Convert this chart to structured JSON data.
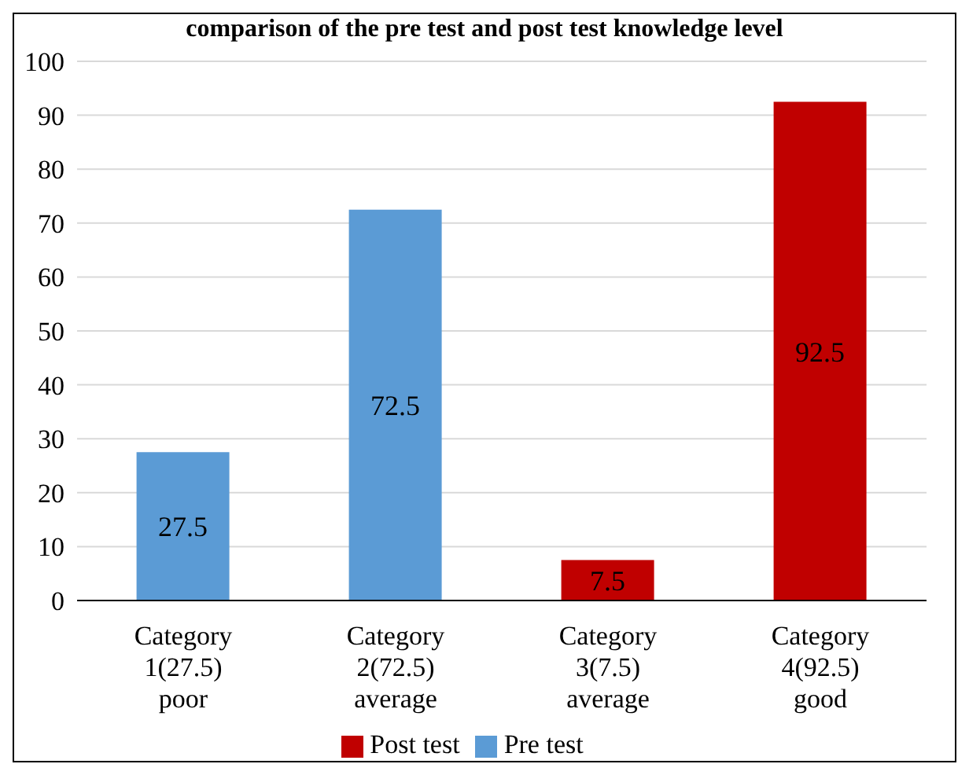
{
  "chart_data": {
    "type": "bar",
    "title": "comparison of the pre test and post test knowledge level",
    "categories": [
      "Category 1(27.5) poor",
      "Category 2(72.5) average",
      "Category 3(7.5) average",
      "Category 4(92.5) good"
    ],
    "series": [
      {
        "name": "Pre test",
        "color": "#5b9bd5",
        "values": [
          27.5,
          72.5,
          null,
          null
        ]
      },
      {
        "name": "Post test",
        "color": "#c00000",
        "values": [
          null,
          null,
          7.5,
          92.5
        ]
      }
    ],
    "stacked": true,
    "ylim": [
      0,
      100
    ],
    "yticks": [
      0,
      10,
      20,
      30,
      40,
      50,
      60,
      70,
      80,
      90,
      100
    ],
    "grid": "y",
    "legend": "bottom",
    "data_labels": true
  }
}
